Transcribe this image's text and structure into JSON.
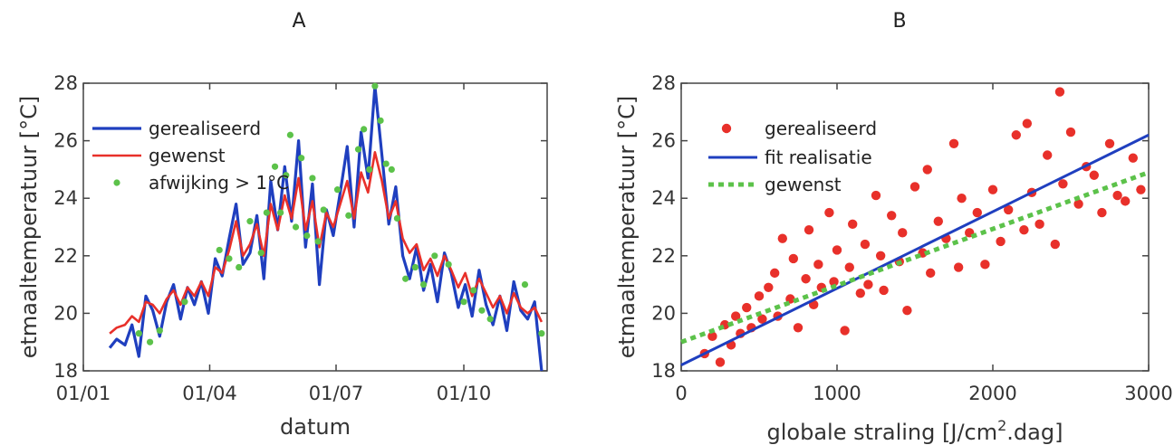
{
  "chart_data": [
    {
      "panel": "A",
      "type": "line",
      "title": "A",
      "xlabel": "datum",
      "ylabel": "etmaaltemperatuur [°C]",
      "xlim": [
        "2016-01-01",
        "2016-11-30"
      ],
      "ylim": [
        18,
        28
      ],
      "xticks": [
        {
          "x": "2016-01-01",
          "label": "01/01"
        },
        {
          "x": "2016-04-01",
          "label": "01/04"
        },
        {
          "x": "2016-07-01",
          "label": "01/07"
        },
        {
          "x": "2016-10-01",
          "label": "01/10"
        }
      ],
      "yticks": [
        18,
        20,
        22,
        24,
        26,
        28
      ],
      "legend": [
        "gerealiseerd",
        "gewenst",
        "afwijking > 1°C"
      ],
      "legend_position": "top-left",
      "colors": {
        "gerealiseerd": "#1f3fbf",
        "gewenst": "#e8302a",
        "afwijking": "#5cc24a"
      },
      "series": [
        {
          "name": "gerealiseerd",
          "x": [
            "2016-01-20",
            "2016-01-25",
            "2016-01-31",
            "2016-02-05",
            "2016-02-10",
            "2016-02-15",
            "2016-02-20",
            "2016-02-25",
            "2016-03-01",
            "2016-03-06",
            "2016-03-11",
            "2016-03-16",
            "2016-03-21",
            "2016-03-26",
            "2016-03-31",
            "2016-04-05",
            "2016-04-10",
            "2016-04-15",
            "2016-04-20",
            "2016-04-25",
            "2016-04-30",
            "2016-05-05",
            "2016-05-10",
            "2016-05-15",
            "2016-05-20",
            "2016-05-25",
            "2016-05-30",
            "2016-06-04",
            "2016-06-09",
            "2016-06-14",
            "2016-06-19",
            "2016-06-24",
            "2016-06-29",
            "2016-07-04",
            "2016-07-09",
            "2016-07-14",
            "2016-07-19",
            "2016-07-24",
            "2016-07-29",
            "2016-08-03",
            "2016-08-08",
            "2016-08-13",
            "2016-08-18",
            "2016-08-23",
            "2016-08-28",
            "2016-09-02",
            "2016-09-07",
            "2016-09-12",
            "2016-09-17",
            "2016-09-22",
            "2016-09-27",
            "2016-10-02",
            "2016-10-07",
            "2016-10-12",
            "2016-10-17",
            "2016-10-22",
            "2016-10-27",
            "2016-11-01",
            "2016-11-06",
            "2016-11-11",
            "2016-11-16",
            "2016-11-21",
            "2016-11-26"
          ],
          "y": [
            18.8,
            19.1,
            18.9,
            19.6,
            18.5,
            20.6,
            20.1,
            19.2,
            20.4,
            21.0,
            19.8,
            20.9,
            20.3,
            21.1,
            20.0,
            21.9,
            21.3,
            22.6,
            23.8,
            21.7,
            22.1,
            23.4,
            21.2,
            24.6,
            22.9,
            25.1,
            23.2,
            26.0,
            22.3,
            24.5,
            21.0,
            23.6,
            22.7,
            24.2,
            25.8,
            23.0,
            26.3,
            24.7,
            27.9,
            25.5,
            23.1,
            24.4,
            22.0,
            21.2,
            22.3,
            20.8,
            21.7,
            20.4,
            22.1,
            21.4,
            20.2,
            21.0,
            19.9,
            21.5,
            20.3,
            19.6,
            20.6,
            19.4,
            21.1,
            20.1,
            19.8,
            20.4,
            18.0
          ]
        },
        {
          "name": "gewenst",
          "x": [
            "2016-01-20",
            "2016-01-25",
            "2016-01-31",
            "2016-02-05",
            "2016-02-10",
            "2016-02-15",
            "2016-02-20",
            "2016-02-25",
            "2016-03-01",
            "2016-03-06",
            "2016-03-11",
            "2016-03-16",
            "2016-03-21",
            "2016-03-26",
            "2016-03-31",
            "2016-04-05",
            "2016-04-10",
            "2016-04-15",
            "2016-04-20",
            "2016-04-25",
            "2016-04-30",
            "2016-05-05",
            "2016-05-10",
            "2016-05-15",
            "2016-05-20",
            "2016-05-25",
            "2016-05-30",
            "2016-06-04",
            "2016-06-09",
            "2016-06-14",
            "2016-06-19",
            "2016-06-24",
            "2016-06-29",
            "2016-07-04",
            "2016-07-09",
            "2016-07-14",
            "2016-07-19",
            "2016-07-24",
            "2016-07-29",
            "2016-08-03",
            "2016-08-08",
            "2016-08-13",
            "2016-08-18",
            "2016-08-23",
            "2016-08-28",
            "2016-09-02",
            "2016-09-07",
            "2016-09-12",
            "2016-09-17",
            "2016-09-22",
            "2016-09-27",
            "2016-10-02",
            "2016-10-07",
            "2016-10-12",
            "2016-10-17",
            "2016-10-22",
            "2016-10-27",
            "2016-11-01",
            "2016-11-06",
            "2016-11-11",
            "2016-11-16",
            "2016-11-21",
            "2016-11-26"
          ],
          "y": [
            19.3,
            19.5,
            19.6,
            19.9,
            19.7,
            20.4,
            20.3,
            20.0,
            20.5,
            20.8,
            20.3,
            20.9,
            20.6,
            21.1,
            20.6,
            21.6,
            21.4,
            22.2,
            23.2,
            22.0,
            22.4,
            23.1,
            22.0,
            23.8,
            22.9,
            24.1,
            23.3,
            24.7,
            22.9,
            23.9,
            22.3,
            23.5,
            23.0,
            23.8,
            24.6,
            23.3,
            24.9,
            24.2,
            25.6,
            24.6,
            23.3,
            23.9,
            22.6,
            22.1,
            22.4,
            21.5,
            21.9,
            21.3,
            22.0,
            21.5,
            20.9,
            21.4,
            20.6,
            21.2,
            20.7,
            20.2,
            20.6,
            20.0,
            20.7,
            20.2,
            20.0,
            20.2,
            19.7
          ]
        },
        {
          "name": "afwijking > 1°C",
          "x": [
            "2016-02-10",
            "2016-02-18",
            "2016-02-25",
            "2016-03-14",
            "2016-04-08",
            "2016-04-15",
            "2016-04-22",
            "2016-04-30",
            "2016-05-08",
            "2016-05-12",
            "2016-05-18",
            "2016-05-22",
            "2016-05-26",
            "2016-05-29",
            "2016-06-02",
            "2016-06-06",
            "2016-06-10",
            "2016-06-14",
            "2016-06-18",
            "2016-06-22",
            "2016-07-02",
            "2016-07-10",
            "2016-07-17",
            "2016-07-21",
            "2016-07-25",
            "2016-07-29",
            "2016-08-02",
            "2016-08-06",
            "2016-08-10",
            "2016-08-14",
            "2016-08-20",
            "2016-08-27",
            "2016-09-02",
            "2016-09-10",
            "2016-09-20",
            "2016-10-01",
            "2016-10-08",
            "2016-10-14",
            "2016-10-20",
            "2016-11-14",
            "2016-11-26"
          ],
          "y": [
            19.3,
            19.0,
            19.4,
            20.4,
            22.2,
            21.9,
            21.6,
            23.2,
            22.1,
            23.5,
            25.1,
            23.5,
            24.8,
            26.2,
            23.0,
            25.4,
            22.7,
            24.7,
            22.5,
            23.6,
            24.3,
            23.4,
            25.7,
            26.4,
            25.0,
            27.9,
            26.7,
            25.2,
            25.0,
            23.3,
            21.2,
            21.6,
            21.0,
            22.0,
            21.7,
            20.4,
            20.8,
            20.1,
            19.8,
            21.0,
            19.3
          ]
        }
      ]
    },
    {
      "panel": "B",
      "type": "scatter",
      "title": "B",
      "xlabel": "globale straling [J/cm",
      "xlabel_sup": "2",
      "xlabel_suffix": ".dag]",
      "ylabel": "etmaaltemperatuur [°C]",
      "xlim": [
        0,
        3000
      ],
      "ylim": [
        18,
        28
      ],
      "xticks": [
        0,
        1000,
        2000,
        3000
      ],
      "yticks": [
        18,
        20,
        22,
        24,
        26,
        28
      ],
      "legend": [
        "gerealiseerd",
        "fit realisatie",
        "gewenst"
      ],
      "legend_position": "top-left",
      "colors": {
        "gerealiseerd": "#e8302a",
        "fit": "#1f3fbf",
        "gewenst": "#5cc24a"
      },
      "series": [
        {
          "name": "gerealiseerd",
          "x": [
            150,
            200,
            250,
            280,
            320,
            350,
            380,
            420,
            450,
            500,
            520,
            560,
            600,
            620,
            650,
            700,
            720,
            750,
            800,
            820,
            850,
            880,
            900,
            950,
            980,
            1000,
            1050,
            1080,
            1100,
            1150,
            1180,
            1200,
            1250,
            1280,
            1300,
            1350,
            1400,
            1420,
            1450,
            1500,
            1550,
            1580,
            1600,
            1650,
            1700,
            1750,
            1780,
            1800,
            1850,
            1900,
            1950,
            2000,
            2050,
            2100,
            2150,
            2200,
            2220,
            2250,
            2300,
            2350,
            2400,
            2430,
            2450,
            2500,
            2550,
            2600,
            2650,
            2700,
            2750,
            2800,
            2850,
            2900,
            2950
          ],
          "y": [
            18.6,
            19.2,
            18.3,
            19.6,
            18.9,
            19.9,
            19.3,
            20.2,
            19.5,
            20.6,
            19.8,
            20.9,
            21.4,
            19.9,
            22.6,
            20.5,
            21.9,
            19.5,
            21.2,
            22.9,
            20.3,
            21.7,
            20.9,
            23.5,
            21.1,
            22.2,
            19.4,
            21.6,
            23.1,
            20.7,
            22.4,
            21.0,
            24.1,
            22.0,
            20.8,
            23.4,
            21.8,
            22.8,
            20.1,
            24.4,
            22.1,
            25.0,
            21.4,
            23.2,
            22.6,
            25.9,
            21.6,
            24.0,
            22.8,
            23.5,
            21.7,
            24.3,
            22.5,
            23.6,
            26.2,
            22.9,
            26.6,
            24.2,
            23.1,
            25.5,
            22.4,
            27.7,
            24.5,
            26.3,
            23.8,
            25.1,
            24.8,
            23.5,
            25.9,
            24.1,
            23.9,
            25.4,
            24.3
          ]
        },
        {
          "name": "fit realisatie",
          "type": "line",
          "x": [
            0,
            3000
          ],
          "y": [
            18.2,
            26.2
          ]
        },
        {
          "name": "gewenst",
          "type": "line",
          "x": [
            0,
            3000
          ],
          "y": [
            19.0,
            24.9
          ]
        }
      ]
    }
  ]
}
